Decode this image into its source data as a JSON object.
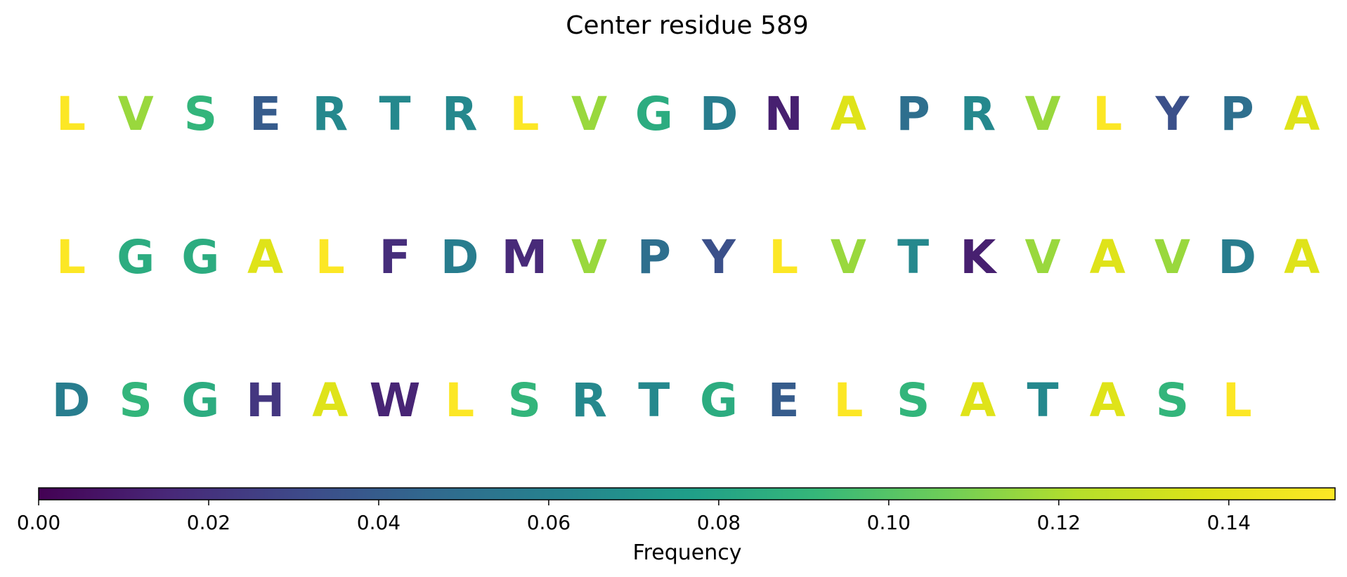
{
  "chart_data": {
    "type": "sequence-colormap",
    "title": "Center residue 589",
    "rows": [
      {
        "residues": [
          "L",
          "V",
          "S",
          "E",
          "R",
          "T",
          "R",
          "L",
          "V",
          "G",
          "D",
          "N",
          "A",
          "P",
          "R",
          "V",
          "L",
          "Y",
          "P",
          "A"
        ],
        "values": [
          0.152,
          0.116,
          0.09,
          0.04,
          0.064,
          0.064,
          0.064,
          0.152,
          0.116,
          0.085,
          0.058,
          0.012,
          0.138,
          0.05,
          0.064,
          0.116,
          0.152,
          0.034,
          0.05,
          0.138
        ]
      },
      {
        "residues": [
          "L",
          "G",
          "G",
          "A",
          "L",
          "F",
          "D",
          "M",
          "V",
          "P",
          "Y",
          "L",
          "V",
          "T",
          "K",
          "V",
          "A",
          "V",
          "D",
          "A"
        ],
        "values": [
          0.152,
          0.085,
          0.085,
          0.138,
          0.152,
          0.018,
          0.058,
          0.016,
          0.116,
          0.05,
          0.034,
          0.152,
          0.116,
          0.064,
          0.012,
          0.116,
          0.138,
          0.116,
          0.058,
          0.138
        ]
      },
      {
        "residues": [
          "D",
          "S",
          "G",
          "H",
          "A",
          "W",
          "L",
          "S",
          "R",
          "T",
          "G",
          "E",
          "L",
          "S",
          "A",
          "T",
          "A",
          "S",
          "L"
        ],
        "values": [
          0.058,
          0.09,
          0.085,
          0.022,
          0.138,
          0.014,
          0.152,
          0.09,
          0.064,
          0.064,
          0.085,
          0.04,
          0.152,
          0.09,
          0.138,
          0.064,
          0.138,
          0.09,
          0.152
        ]
      }
    ],
    "colorbar": {
      "colormap": "viridis",
      "range": [
        0,
        0.1525
      ],
      "ticks": [
        0.0,
        0.02,
        0.04,
        0.06,
        0.08,
        0.1,
        0.12,
        0.14
      ],
      "tick_labels": [
        "0.00",
        "0.02",
        "0.04",
        "0.06",
        "0.08",
        "0.10",
        "0.12",
        "0.14"
      ],
      "label": "Frequency",
      "orientation": "horizontal"
    }
  }
}
